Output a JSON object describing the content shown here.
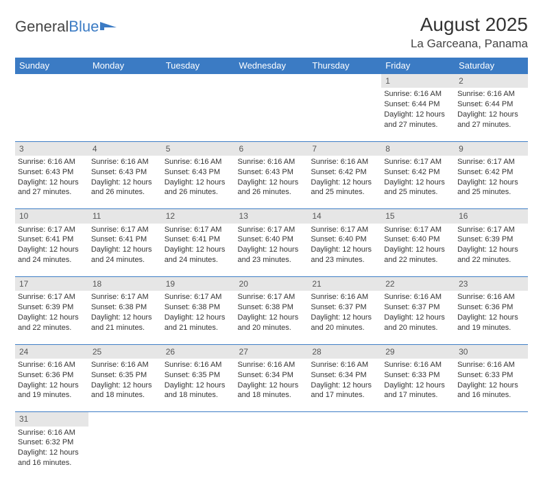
{
  "logo": {
    "text1": "General",
    "text2": "Blue"
  },
  "month_title": "August 2025",
  "location": "La Garceana, Panama",
  "colors": {
    "header_bg": "#3b7bc4",
    "daynum_bg": "#e6e6e6",
    "rule": "#3b7bc4",
    "text": "#333333"
  },
  "weekdays": [
    "Sunday",
    "Monday",
    "Tuesday",
    "Wednesday",
    "Thursday",
    "Friday",
    "Saturday"
  ],
  "weeks": [
    {
      "nums": [
        "",
        "",
        "",
        "",
        "",
        "1",
        "2"
      ],
      "cells": [
        null,
        null,
        null,
        null,
        null,
        {
          "sr": "6:16 AM",
          "ss": "6:44 PM",
          "dl": "12 hours and 27 minutes."
        },
        {
          "sr": "6:16 AM",
          "ss": "6:44 PM",
          "dl": "12 hours and 27 minutes."
        }
      ]
    },
    {
      "nums": [
        "3",
        "4",
        "5",
        "6",
        "7",
        "8",
        "9"
      ],
      "cells": [
        {
          "sr": "6:16 AM",
          "ss": "6:43 PM",
          "dl": "12 hours and 27 minutes."
        },
        {
          "sr": "6:16 AM",
          "ss": "6:43 PM",
          "dl": "12 hours and 26 minutes."
        },
        {
          "sr": "6:16 AM",
          "ss": "6:43 PM",
          "dl": "12 hours and 26 minutes."
        },
        {
          "sr": "6:16 AM",
          "ss": "6:43 PM",
          "dl": "12 hours and 26 minutes."
        },
        {
          "sr": "6:16 AM",
          "ss": "6:42 PM",
          "dl": "12 hours and 25 minutes."
        },
        {
          "sr": "6:17 AM",
          "ss": "6:42 PM",
          "dl": "12 hours and 25 minutes."
        },
        {
          "sr": "6:17 AM",
          "ss": "6:42 PM",
          "dl": "12 hours and 25 minutes."
        }
      ]
    },
    {
      "nums": [
        "10",
        "11",
        "12",
        "13",
        "14",
        "15",
        "16"
      ],
      "cells": [
        {
          "sr": "6:17 AM",
          "ss": "6:41 PM",
          "dl": "12 hours and 24 minutes."
        },
        {
          "sr": "6:17 AM",
          "ss": "6:41 PM",
          "dl": "12 hours and 24 minutes."
        },
        {
          "sr": "6:17 AM",
          "ss": "6:41 PM",
          "dl": "12 hours and 24 minutes."
        },
        {
          "sr": "6:17 AM",
          "ss": "6:40 PM",
          "dl": "12 hours and 23 minutes."
        },
        {
          "sr": "6:17 AM",
          "ss": "6:40 PM",
          "dl": "12 hours and 23 minutes."
        },
        {
          "sr": "6:17 AM",
          "ss": "6:40 PM",
          "dl": "12 hours and 22 minutes."
        },
        {
          "sr": "6:17 AM",
          "ss": "6:39 PM",
          "dl": "12 hours and 22 minutes."
        }
      ]
    },
    {
      "nums": [
        "17",
        "18",
        "19",
        "20",
        "21",
        "22",
        "23"
      ],
      "cells": [
        {
          "sr": "6:17 AM",
          "ss": "6:39 PM",
          "dl": "12 hours and 22 minutes."
        },
        {
          "sr": "6:17 AM",
          "ss": "6:38 PM",
          "dl": "12 hours and 21 minutes."
        },
        {
          "sr": "6:17 AM",
          "ss": "6:38 PM",
          "dl": "12 hours and 21 minutes."
        },
        {
          "sr": "6:17 AM",
          "ss": "6:38 PM",
          "dl": "12 hours and 20 minutes."
        },
        {
          "sr": "6:16 AM",
          "ss": "6:37 PM",
          "dl": "12 hours and 20 minutes."
        },
        {
          "sr": "6:16 AM",
          "ss": "6:37 PM",
          "dl": "12 hours and 20 minutes."
        },
        {
          "sr": "6:16 AM",
          "ss": "6:36 PM",
          "dl": "12 hours and 19 minutes."
        }
      ]
    },
    {
      "nums": [
        "24",
        "25",
        "26",
        "27",
        "28",
        "29",
        "30"
      ],
      "cells": [
        {
          "sr": "6:16 AM",
          "ss": "6:36 PM",
          "dl": "12 hours and 19 minutes."
        },
        {
          "sr": "6:16 AM",
          "ss": "6:35 PM",
          "dl": "12 hours and 18 minutes."
        },
        {
          "sr": "6:16 AM",
          "ss": "6:35 PM",
          "dl": "12 hours and 18 minutes."
        },
        {
          "sr": "6:16 AM",
          "ss": "6:34 PM",
          "dl": "12 hours and 18 minutes."
        },
        {
          "sr": "6:16 AM",
          "ss": "6:34 PM",
          "dl": "12 hours and 17 minutes."
        },
        {
          "sr": "6:16 AM",
          "ss": "6:33 PM",
          "dl": "12 hours and 17 minutes."
        },
        {
          "sr": "6:16 AM",
          "ss": "6:33 PM",
          "dl": "12 hours and 16 minutes."
        }
      ]
    },
    {
      "nums": [
        "31",
        "",
        "",
        "",
        "",
        "",
        ""
      ],
      "cells": [
        {
          "sr": "6:16 AM",
          "ss": "6:32 PM",
          "dl": "12 hours and 16 minutes."
        },
        null,
        null,
        null,
        null,
        null,
        null
      ]
    }
  ],
  "labels": {
    "sunrise": "Sunrise: ",
    "sunset": "Sunset: ",
    "daylight": "Daylight: "
  }
}
